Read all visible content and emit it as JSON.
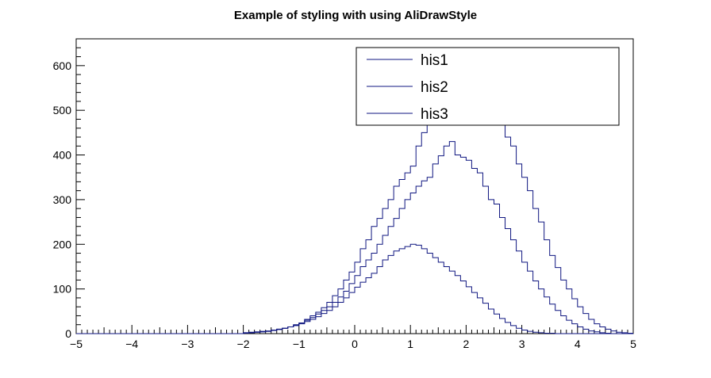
{
  "chart_data": {
    "type": "line",
    "title": "Example of styling with using AliDrawStyle",
    "xlabel": "",
    "ylabel": "",
    "xlim": [
      -5,
      5
    ],
    "ylim": [
      0,
      660
    ],
    "grid": false,
    "legend_position": "top-right",
    "x_ticks": [
      -5,
      -4,
      -3,
      -2,
      -1,
      0,
      1,
      2,
      3,
      4,
      5
    ],
    "y_ticks": [
      0,
      100,
      200,
      300,
      400,
      500,
      600
    ],
    "x_tick_labels": [
      "−5",
      "−4",
      "−3",
      "−2",
      "−1",
      "0",
      "1",
      "2",
      "3",
      "4",
      "5"
    ],
    "y_tick_labels": [
      "0",
      "100",
      "200",
      "300",
      "400",
      "500",
      "600"
    ],
    "bin_edges": {
      "start": -5,
      "end": 5,
      "count": 100
    },
    "series": [
      {
        "name": "his1",
        "color": "#0f1680",
        "values": [
          0,
          0,
          0,
          0,
          0,
          0,
          0,
          0,
          0,
          0,
          0,
          0,
          0,
          0,
          0,
          0,
          0,
          0,
          0,
          0,
          0,
          0,
          0,
          0,
          0,
          0,
          0,
          0,
          0,
          0,
          2,
          2,
          3,
          4,
          5,
          8,
          10,
          12,
          15,
          20,
          24,
          32,
          40,
          48,
          58,
          70,
          85,
          100,
          120,
          138,
          160,
          190,
          210,
          240,
          258,
          280,
          300,
          330,
          345,
          360,
          375,
          420,
          450,
          480,
          500,
          530,
          555,
          580,
          600,
          590,
          580,
          600,
          585,
          570,
          540,
          520,
          480,
          440,
          420,
          380,
          350,
          320,
          280,
          250,
          210,
          175,
          148,
          120,
          100,
          78,
          60,
          45,
          32,
          22,
          15,
          10,
          6,
          3,
          2,
          1
        ]
      },
      {
        "name": "his2",
        "color": "#0f1680",
        "values": [
          0,
          0,
          0,
          0,
          0,
          0,
          0,
          0,
          0,
          0,
          0,
          0,
          0,
          0,
          0,
          0,
          0,
          0,
          0,
          0,
          0,
          0,
          0,
          0,
          0,
          0,
          0,
          0,
          0,
          0,
          1,
          2,
          3,
          4,
          5,
          7,
          9,
          12,
          15,
          19,
          24,
          30,
          36,
          44,
          52,
          60,
          70,
          82,
          95,
          112,
          130,
          150,
          165,
          180,
          200,
          220,
          240,
          258,
          280,
          300,
          315,
          330,
          342,
          350,
          380,
          398,
          420,
          430,
          400,
          395,
          388,
          370,
          360,
          330,
          300,
          290,
          260,
          235,
          210,
          185,
          160,
          140,
          118,
          100,
          82,
          66,
          52,
          40,
          30,
          22,
          15,
          10,
          6,
          4,
          2,
          1,
          0,
          0,
          0,
          0
        ]
      },
      {
        "name": "his3",
        "color": "#0f1680",
        "values": [
          0,
          0,
          0,
          0,
          0,
          0,
          0,
          0,
          0,
          0,
          0,
          0,
          0,
          0,
          0,
          0,
          0,
          0,
          0,
          0,
          0,
          0,
          0,
          0,
          0,
          0,
          0,
          0,
          0,
          0,
          2,
          3,
          4,
          5,
          6,
          8,
          10,
          12,
          15,
          18,
          22,
          27,
          32,
          38,
          45,
          52,
          60,
          70,
          80,
          92,
          104,
          115,
          125,
          135,
          150,
          165,
          175,
          185,
          190,
          195,
          200,
          198,
          190,
          180,
          170,
          160,
          150,
          140,
          130,
          118,
          105,
          92,
          80,
          68,
          55,
          44,
          34,
          25,
          18,
          12,
          8,
          5,
          3,
          2,
          1,
          1,
          0,
          0,
          0,
          0,
          0,
          0,
          0,
          0,
          0,
          0,
          0,
          0,
          0,
          0
        ]
      }
    ]
  }
}
